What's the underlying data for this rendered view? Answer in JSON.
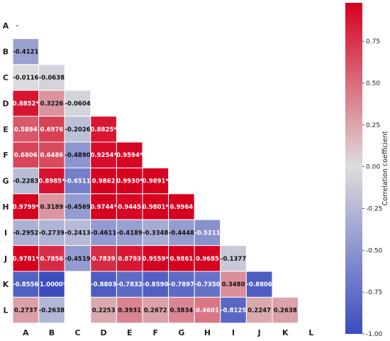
{
  "chart_data": {
    "type": "heatmap",
    "variables": [
      "A",
      "B",
      "C",
      "D",
      "E",
      "F",
      "G",
      "H",
      "I",
      "J",
      "K",
      "L"
    ],
    "colorbar_label": "Correlation coefficient",
    "colorbar_ticks": [
      "0.75",
      "0.50",
      "0.25",
      "0.00",
      "-0.25",
      "-0.50",
      "-0.75",
      "-1.00"
    ],
    "colorbar_range": [
      -1.0,
      0.98
    ],
    "colormap": [
      "#3b4cc0",
      "#dddddd",
      "#d6001f"
    ],
    "diagonal_placeholder": "-",
    "cells": [
      {
        "row": "B",
        "col": "A",
        "value": -0.4121,
        "label": "-0.4121"
      },
      {
        "row": "C",
        "col": "A",
        "value": -0.0116,
        "label": "-0.0116"
      },
      {
        "row": "C",
        "col": "B",
        "value": -0.0638,
        "label": "-0.0638"
      },
      {
        "row": "D",
        "col": "A",
        "value": 0.8852,
        "label": "0.8852*"
      },
      {
        "row": "D",
        "col": "B",
        "value": 0.3226,
        "label": "0.3226"
      },
      {
        "row": "D",
        "col": "C",
        "value": -0.0604,
        "label": "-0.0604"
      },
      {
        "row": "E",
        "col": "A",
        "value": 0.5894,
        "label": "0.5894"
      },
      {
        "row": "E",
        "col": "B",
        "value": 0.6976,
        "label": "0.6976"
      },
      {
        "row": "E",
        "col": "C",
        "value": -0.2026,
        "label": "-0.2026"
      },
      {
        "row": "E",
        "col": "D",
        "value": 0.8825,
        "label": "0.8825*"
      },
      {
        "row": "F",
        "col": "A",
        "value": 0.6806,
        "label": "0.6806"
      },
      {
        "row": "F",
        "col": "B",
        "value": 0.6486,
        "label": "0.6486"
      },
      {
        "row": "F",
        "col": "C",
        "value": -0.489,
        "label": "-0.4890"
      },
      {
        "row": "F",
        "col": "D",
        "value": 0.9254,
        "label": "0.9254*"
      },
      {
        "row": "F",
        "col": "E",
        "value": 0.9594,
        "label": "0.9594*"
      },
      {
        "row": "G",
        "col": "A",
        "value": -0.2283,
        "label": "-0.2283"
      },
      {
        "row": "G",
        "col": "B",
        "value": 0.8985,
        "label": "0.8985*"
      },
      {
        "row": "G",
        "col": "C",
        "value": -0.6511,
        "label": "-0.6511"
      },
      {
        "row": "G",
        "col": "D",
        "value": 0.9862,
        "label": "0.9862"
      },
      {
        "row": "G",
        "col": "E",
        "value": 0.993,
        "label": "0.9930*"
      },
      {
        "row": "G",
        "col": "F",
        "value": 0.9891,
        "label": "0.9891*"
      },
      {
        "row": "H",
        "col": "A",
        "value": 0.9799,
        "label": "0.9799*"
      },
      {
        "row": "H",
        "col": "B",
        "value": 0.3189,
        "label": "0.3189"
      },
      {
        "row": "H",
        "col": "C",
        "value": -0.4569,
        "label": "-0.4569"
      },
      {
        "row": "H",
        "col": "D",
        "value": 0.9744,
        "label": "0.9744*"
      },
      {
        "row": "H",
        "col": "E",
        "value": 0.9445,
        "label": "0.9445"
      },
      {
        "row": "H",
        "col": "F",
        "value": 0.9801,
        "label": "0.9801*"
      },
      {
        "row": "H",
        "col": "G",
        "value": 0.9964,
        "label": "0.9964"
      },
      {
        "row": "I",
        "col": "A",
        "value": -0.2952,
        "label": "-0.2952"
      },
      {
        "row": "I",
        "col": "B",
        "value": -0.2739,
        "label": "-0.2739"
      },
      {
        "row": "I",
        "col": "C",
        "value": -0.2413,
        "label": "-0.2413"
      },
      {
        "row": "I",
        "col": "D",
        "value": -0.4611,
        "label": "-0.4611"
      },
      {
        "row": "I",
        "col": "E",
        "value": -0.4189,
        "label": "-0.4189"
      },
      {
        "row": "I",
        "col": "F",
        "value": -0.3348,
        "label": "-0.3348"
      },
      {
        "row": "I",
        "col": "G",
        "value": -0.4448,
        "label": "-0.4448"
      },
      {
        "row": "I",
        "col": "H",
        "value": -0.5211,
        "label": "-0.5211"
      },
      {
        "row": "J",
        "col": "A",
        "value": 0.9781,
        "label": "0.9781*"
      },
      {
        "row": "J",
        "col": "B",
        "value": 0.7856,
        "label": "0.7856"
      },
      {
        "row": "J",
        "col": "C",
        "value": -0.4519,
        "label": "-0.4519"
      },
      {
        "row": "J",
        "col": "D",
        "value": 0.7839,
        "label": "0.7839"
      },
      {
        "row": "J",
        "col": "E",
        "value": 0.8793,
        "label": "0.8793"
      },
      {
        "row": "J",
        "col": "F",
        "value": 0.9559,
        "label": "0.9559*"
      },
      {
        "row": "J",
        "col": "G",
        "value": 0.9861,
        "label": "0.9861"
      },
      {
        "row": "J",
        "col": "H",
        "value": 0.9685,
        "label": "0.9685"
      },
      {
        "row": "J",
        "col": "I",
        "value": -0.1377,
        "label": "-0.1377"
      },
      {
        "row": "K",
        "col": "A",
        "value": -0.8556,
        "label": "-0.8556"
      },
      {
        "row": "K",
        "col": "B",
        "value": -1.0,
        "label": "-1.0000*"
      },
      {
        "row": "K",
        "col": "D",
        "value": -0.8803,
        "label": "-0.8803"
      },
      {
        "row": "K",
        "col": "E",
        "value": -0.7832,
        "label": "-0.7832"
      },
      {
        "row": "K",
        "col": "F",
        "value": -0.859,
        "label": "-0.8590"
      },
      {
        "row": "K",
        "col": "G",
        "value": -0.7897,
        "label": "-0.7897"
      },
      {
        "row": "K",
        "col": "H",
        "value": -0.735,
        "label": "-0.7350"
      },
      {
        "row": "K",
        "col": "I",
        "value": 0.348,
        "label": "0.3480"
      },
      {
        "row": "K",
        "col": "J",
        "value": -0.8806,
        "label": "-0.8806"
      },
      {
        "row": "L",
        "col": "A",
        "value": 0.2737,
        "label": "0.2737"
      },
      {
        "row": "L",
        "col": "B",
        "value": -0.2638,
        "label": "-0.2638"
      },
      {
        "row": "L",
        "col": "D",
        "value": 0.2253,
        "label": "0.2253"
      },
      {
        "row": "L",
        "col": "E",
        "value": 0.3931,
        "label": "0.3931"
      },
      {
        "row": "L",
        "col": "F",
        "value": 0.2672,
        "label": "0.2672"
      },
      {
        "row": "L",
        "col": "G",
        "value": 0.3834,
        "label": "0.3834"
      },
      {
        "row": "L",
        "col": "H",
        "value": 0.4601,
        "label": "0.4601"
      },
      {
        "row": "L",
        "col": "I",
        "value": -0.8125,
        "label": "-0.8125"
      },
      {
        "row": "L",
        "col": "J",
        "value": 0.2247,
        "label": "0.2247"
      },
      {
        "row": "L",
        "col": "K",
        "value": 0.2638,
        "label": "0.2638"
      }
    ]
  }
}
